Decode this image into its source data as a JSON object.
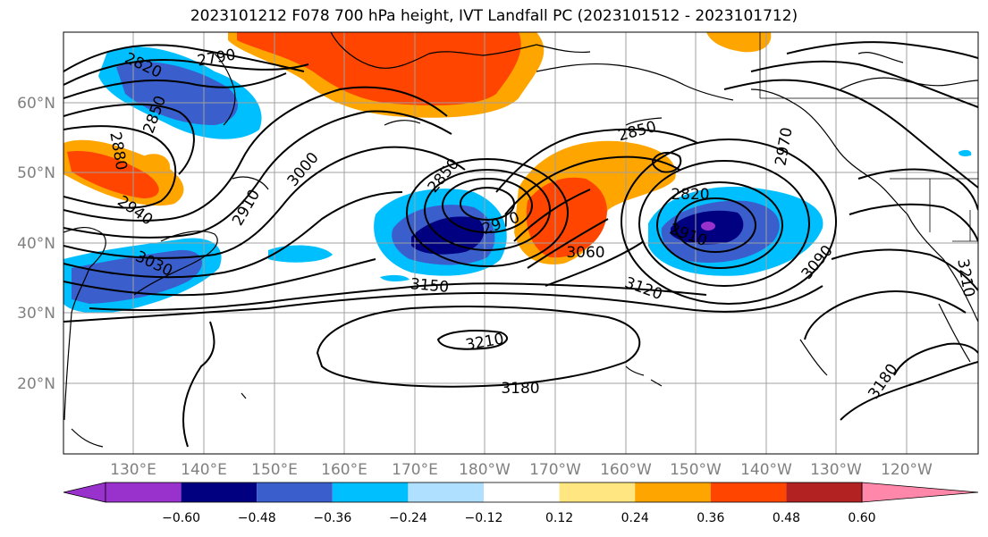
{
  "title": "2023101212 F078 700 hPa height, IVT Landfall PC (2023101512 - 2023101712)",
  "latitude_labels": [
    "60°N",
    "50°N",
    "40°N",
    "30°N",
    "20°N"
  ],
  "longitude_labels": [
    "130°E",
    "140°E",
    "150°E",
    "160°E",
    "170°E",
    "180°W",
    "170°W",
    "160°W",
    "150°W",
    "140°W",
    "130°W",
    "120°W"
  ],
  "contour_labels": [
    "2820",
    "2790",
    "2850",
    "2880",
    "2910",
    "2940",
    "3000",
    "3030",
    "2850",
    "2970",
    "3060",
    "3150",
    "3120",
    "2850",
    "2820",
    "2970",
    "2910",
    "3090",
    "3210",
    "3210",
    "3180",
    "3180"
  ],
  "colorbar": {
    "ticks": [
      "−0.60",
      "−0.48",
      "−0.36",
      "−0.24",
      "−0.12",
      "0.12",
      "0.24",
      "0.36",
      "0.48",
      "0.60"
    ],
    "colors": [
      "#9932cc",
      "#000080",
      "#3a5fcd",
      "#00bfff",
      "#b0e0ff",
      "#ffffff",
      "#ffe680",
      "#ffa500",
      "#ff4500",
      "#b22222",
      "#ff88aa"
    ]
  },
  "colors": {
    "text": "#000000",
    "grid": "#a0a0a0",
    "axis_tick_text": "#808080"
  }
}
